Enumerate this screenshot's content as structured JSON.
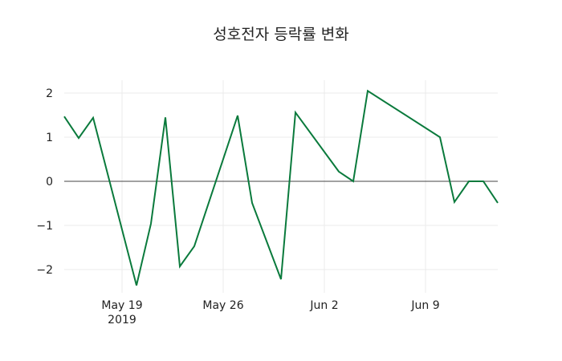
{
  "chart_data": {
    "type": "line",
    "title": "성호전자 등락률 변화",
    "xlabel": "",
    "ylabel": "",
    "x": [
      "2019-05-15",
      "2019-05-16",
      "2019-05-17",
      "2019-05-20",
      "2019-05-21",
      "2019-05-22",
      "2019-05-23",
      "2019-05-24",
      "2019-05-27",
      "2019-05-28",
      "2019-05-30",
      "2019-05-31",
      "2019-06-03",
      "2019-06-04",
      "2019-06-05",
      "2019-06-10",
      "2019-06-11",
      "2019-06-12",
      "2019-06-13",
      "2019-06-14"
    ],
    "series": [
      {
        "name": "등락률",
        "color": "#0a7a3c",
        "values": [
          1.47,
          0.98,
          1.44,
          -2.36,
          -0.96,
          1.45,
          -1.93,
          -1.47,
          1.49,
          -0.49,
          -2.22,
          1.56,
          0.22,
          0.0,
          2.05,
          1.0,
          -0.47,
          0.0,
          0.0,
          -0.49
        ]
      }
    ],
    "x_ticks": [
      {
        "date": "2019-05-19",
        "label": "May 19",
        "sublabel": "2019"
      },
      {
        "date": "2019-05-26",
        "label": "May 26",
        "sublabel": ""
      },
      {
        "date": "2019-06-02",
        "label": "Jun 2",
        "sublabel": ""
      },
      {
        "date": "2019-06-09",
        "label": "Jun 9",
        "sublabel": ""
      }
    ],
    "y_ticks": [
      2,
      1,
      0,
      -1,
      -2
    ],
    "y_tick_labels": [
      "2",
      "1",
      "0",
      "−1",
      "−2"
    ],
    "ylim": [
      -2.5,
      2.3
    ],
    "xlim": [
      "2019-05-15",
      "2019-06-14"
    ],
    "grid": true,
    "zero_line": true,
    "legend": "none"
  }
}
